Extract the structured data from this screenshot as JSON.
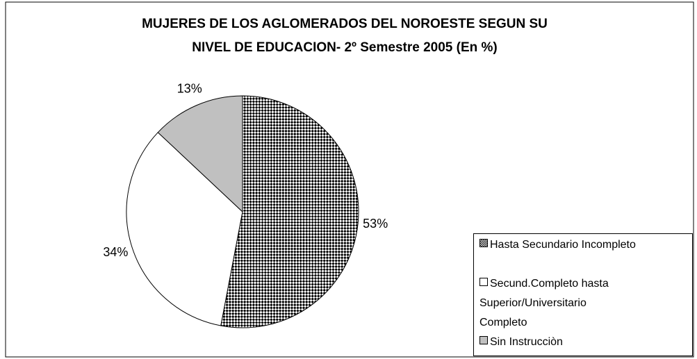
{
  "chart_data": {
    "type": "pie",
    "title": [
      "MUJERES DE LOS AGLOMERADOS DEL NOROESTE SEGUN SU",
      "NIVEL DE EDUCACION- 2º Semestre 2005 (En %)"
    ],
    "categories": [
      "Hasta Secundario Incompleto",
      "Secund.Completo hasta Superior/Universitario Completo",
      "Sin Instrucciòn"
    ],
    "values": [
      53,
      34,
      13
    ],
    "value_labels": [
      "53%",
      "34%",
      "13%"
    ],
    "colors": [
      "#000000",
      "#ffffff",
      "#c0c0c0"
    ],
    "patterns": [
      "checker",
      "none",
      "none"
    ],
    "legend": "right"
  }
}
